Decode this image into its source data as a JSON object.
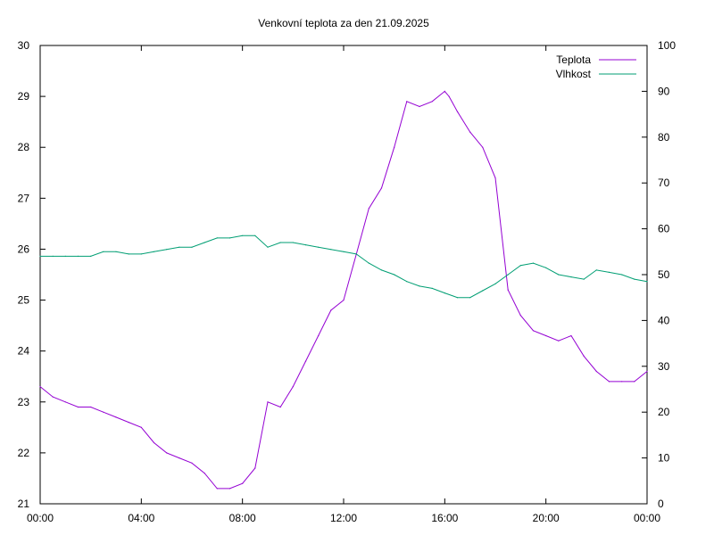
{
  "chart_data": {
    "type": "line",
    "title": "Venkovní teplota za den 21.09.2025",
    "xlabel": "",
    "ylabel": "",
    "y2label": "",
    "x_tick_labels": [
      "00:00",
      "04:00",
      "08:00",
      "12:00",
      "16:00",
      "20:00",
      "00:00"
    ],
    "x_range_hours": [
      0,
      24
    ],
    "ylim": [
      21,
      30
    ],
    "y_ticks": [
      21,
      22,
      23,
      24,
      25,
      26,
      27,
      28,
      29,
      30
    ],
    "y2lim": [
      0,
      100
    ],
    "y2_ticks": [
      0,
      10,
      20,
      30,
      40,
      50,
      60,
      70,
      80,
      90,
      100
    ],
    "grid": false,
    "legend_position": "top-right",
    "series": [
      {
        "name": "Teplota",
        "axis": "left",
        "color": "#9400d3",
        "x": [
          "00:00",
          "00:30",
          "01:00",
          "01:30",
          "02:00",
          "02:30",
          "03:00",
          "03:30",
          "04:00",
          "04:30",
          "05:00",
          "05:30",
          "06:00",
          "06:30",
          "07:00",
          "07:30",
          "08:00",
          "08:30",
          "09:00",
          "09:30",
          "10:00",
          "10:30",
          "11:00",
          "11:30",
          "12:00",
          "12:30",
          "13:00",
          "13:30",
          "14:00",
          "14:30",
          "15:00",
          "15:30",
          "16:00",
          "16:10",
          "16:30",
          "17:00",
          "17:30",
          "18:00",
          "18:30",
          "19:00",
          "19:30",
          "20:00",
          "20:30",
          "21:00",
          "21:30",
          "22:00",
          "22:30",
          "23:00",
          "23:30",
          "24:00"
        ],
        "values": [
          23.3,
          23.1,
          23.0,
          22.9,
          22.9,
          22.8,
          22.7,
          22.6,
          22.5,
          22.2,
          22.0,
          21.9,
          21.8,
          21.6,
          21.3,
          21.3,
          21.4,
          21.7,
          23.0,
          22.9,
          23.3,
          23.8,
          24.3,
          24.8,
          25.0,
          25.9,
          26.8,
          27.2,
          28.0,
          28.9,
          28.8,
          28.9,
          29.1,
          29.0,
          28.7,
          28.3,
          28.0,
          27.4,
          25.2,
          24.7,
          24.4,
          24.3,
          24.2,
          24.3,
          23.9,
          23.6,
          23.4,
          23.4,
          23.4,
          23.6
        ]
      },
      {
        "name": "Vlhkost",
        "axis": "right",
        "color": "#009e73",
        "x": [
          "00:00",
          "00:30",
          "01:00",
          "01:30",
          "02:00",
          "02:30",
          "03:00",
          "03:30",
          "04:00",
          "04:30",
          "05:00",
          "05:30",
          "06:00",
          "06:30",
          "07:00",
          "07:30",
          "08:00",
          "08:30",
          "09:00",
          "09:30",
          "10:00",
          "10:30",
          "11:00",
          "11:30",
          "12:00",
          "12:30",
          "13:00",
          "13:30",
          "14:00",
          "14:30",
          "15:00",
          "15:30",
          "16:00",
          "16:30",
          "17:00",
          "17:30",
          "18:00",
          "18:30",
          "19:00",
          "19:30",
          "20:00",
          "20:30",
          "21:00",
          "21:30",
          "22:00",
          "22:30",
          "23:00",
          "23:30",
          "24:00"
        ],
        "values": [
          54,
          54,
          54,
          54,
          54,
          55,
          55,
          54.5,
          54.5,
          55,
          55.5,
          56,
          56,
          57,
          58,
          58,
          58.5,
          58.5,
          56,
          57,
          57,
          56.5,
          56,
          55.5,
          55,
          54.5,
          52.5,
          51,
          50,
          48.5,
          47.5,
          47,
          46,
          45,
          45,
          46.5,
          48,
          50,
          52,
          52.5,
          51.5,
          50,
          49.5,
          49,
          51,
          50.5,
          50,
          49,
          48.5
        ]
      }
    ]
  }
}
